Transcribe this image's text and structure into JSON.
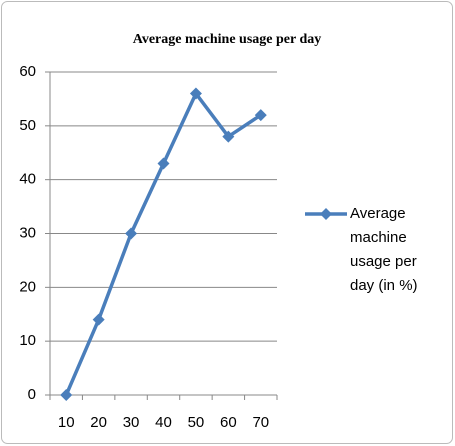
{
  "chart_data": {
    "type": "line",
    "title": "Average machine usage per day",
    "categories": [
      "10",
      "20",
      "30",
      "40",
      "50",
      "60",
      "70"
    ],
    "series": [
      {
        "name": "Average machine usage per day (in %)",
        "color": "#4a7ebb",
        "values": [
          0,
          14,
          30,
          43,
          56,
          48,
          52
        ]
      }
    ],
    "ylim": [
      0,
      60
    ],
    "yticks": [
      0,
      10,
      20,
      30,
      40,
      50,
      60
    ],
    "grid": true,
    "legend": "right"
  }
}
